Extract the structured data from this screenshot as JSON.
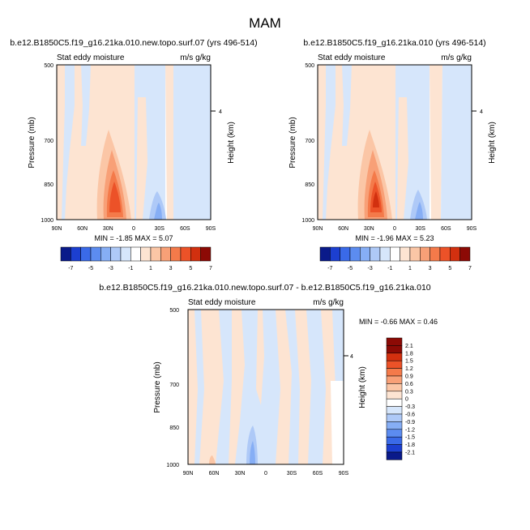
{
  "page_title": "MAM",
  "chart_data": [
    {
      "type": "heatmap",
      "title": "b.e12.B1850C5.f19_g16.21ka.010.new.topo.surf.07 (yrs 496-514)",
      "left_subtitle": "Stat eddy moisture",
      "right_subtitle": "m/s g/kg",
      "ylabel": "Pressure (mb)",
      "ylabel_right": "Height (km)",
      "x_ticks": [
        "90N",
        "60N",
        "30N",
        "0",
        "30S",
        "60S",
        "90S"
      ],
      "y_ticks": [
        "500",
        "700",
        "850",
        "1000"
      ],
      "y_right_ticks": [
        "4"
      ],
      "stats": "MIN =  -1.85   MAX =   5.07",
      "colorbar_labels": [
        "-7",
        "-5",
        "-3",
        "-1",
        "1",
        "3",
        "5",
        "7"
      ],
      "peak": {
        "lat": 25,
        "pressure": 900,
        "value": 5.07
      }
    },
    {
      "type": "heatmap",
      "title": "b.e12.B1850C5.f19_g16.21ka.010 (yrs 496-514)",
      "left_subtitle": "Stat eddy moisture",
      "right_subtitle": "m/s g/kg",
      "ylabel": "Pressure (mb)",
      "ylabel_right": "Height (km)",
      "x_ticks": [
        "90N",
        "60N",
        "30N",
        "0",
        "30S",
        "60S",
        "90S"
      ],
      "y_ticks": [
        "500",
        "700",
        "850",
        "1000"
      ],
      "y_right_ticks": [
        "4"
      ],
      "stats": "MIN =  -1.96   MAX =   5.23",
      "colorbar_labels": [
        "-7",
        "-5",
        "-3",
        "-1",
        "1",
        "3",
        "5",
        "7"
      ],
      "peak": {
        "lat": 25,
        "pressure": 900,
        "value": 5.23
      }
    },
    {
      "type": "heatmap",
      "title": "b.e12.B1850C5.f19_g16.21ka.010.new.topo.surf.07 - b.e12.B1850C5.f19_g16.21ka.010",
      "left_subtitle": "Stat eddy moisture",
      "right_subtitle": "m/s g/kg",
      "ylabel": "Pressure (mb)",
      "ylabel_right": "Height (km)",
      "x_ticks": [
        "90N",
        "60N",
        "30N",
        "0",
        "30S",
        "60S",
        "90S"
      ],
      "y_ticks": [
        "500",
        "700",
        "850",
        "1000"
      ],
      "y_right_ticks": [
        "4"
      ],
      "stats": "MIN =  -0.66   MAX =   0.46",
      "colorbar_labels": [
        "2.1",
        "1.8",
        "1.5",
        "1.2",
        "0.9",
        "0.6",
        "0.3",
        "0",
        "-0.3",
        "-0.6",
        "-0.9",
        "-1.2",
        "-1.5",
        "-1.8",
        "-2.1"
      ]
    }
  ],
  "colors": {
    "palette": [
      "#0a1a8a",
      "#1c3fd0",
      "#3a6ae8",
      "#5c8cf0",
      "#86aef5",
      "#aec9f7",
      "#d6e6fb",
      "#ffffff",
      "#fde4d2",
      "#fbc6a6",
      "#f8a077",
      "#f47a4a",
      "#ec5228",
      "#d2300f",
      "#8c0a05"
    ]
  }
}
